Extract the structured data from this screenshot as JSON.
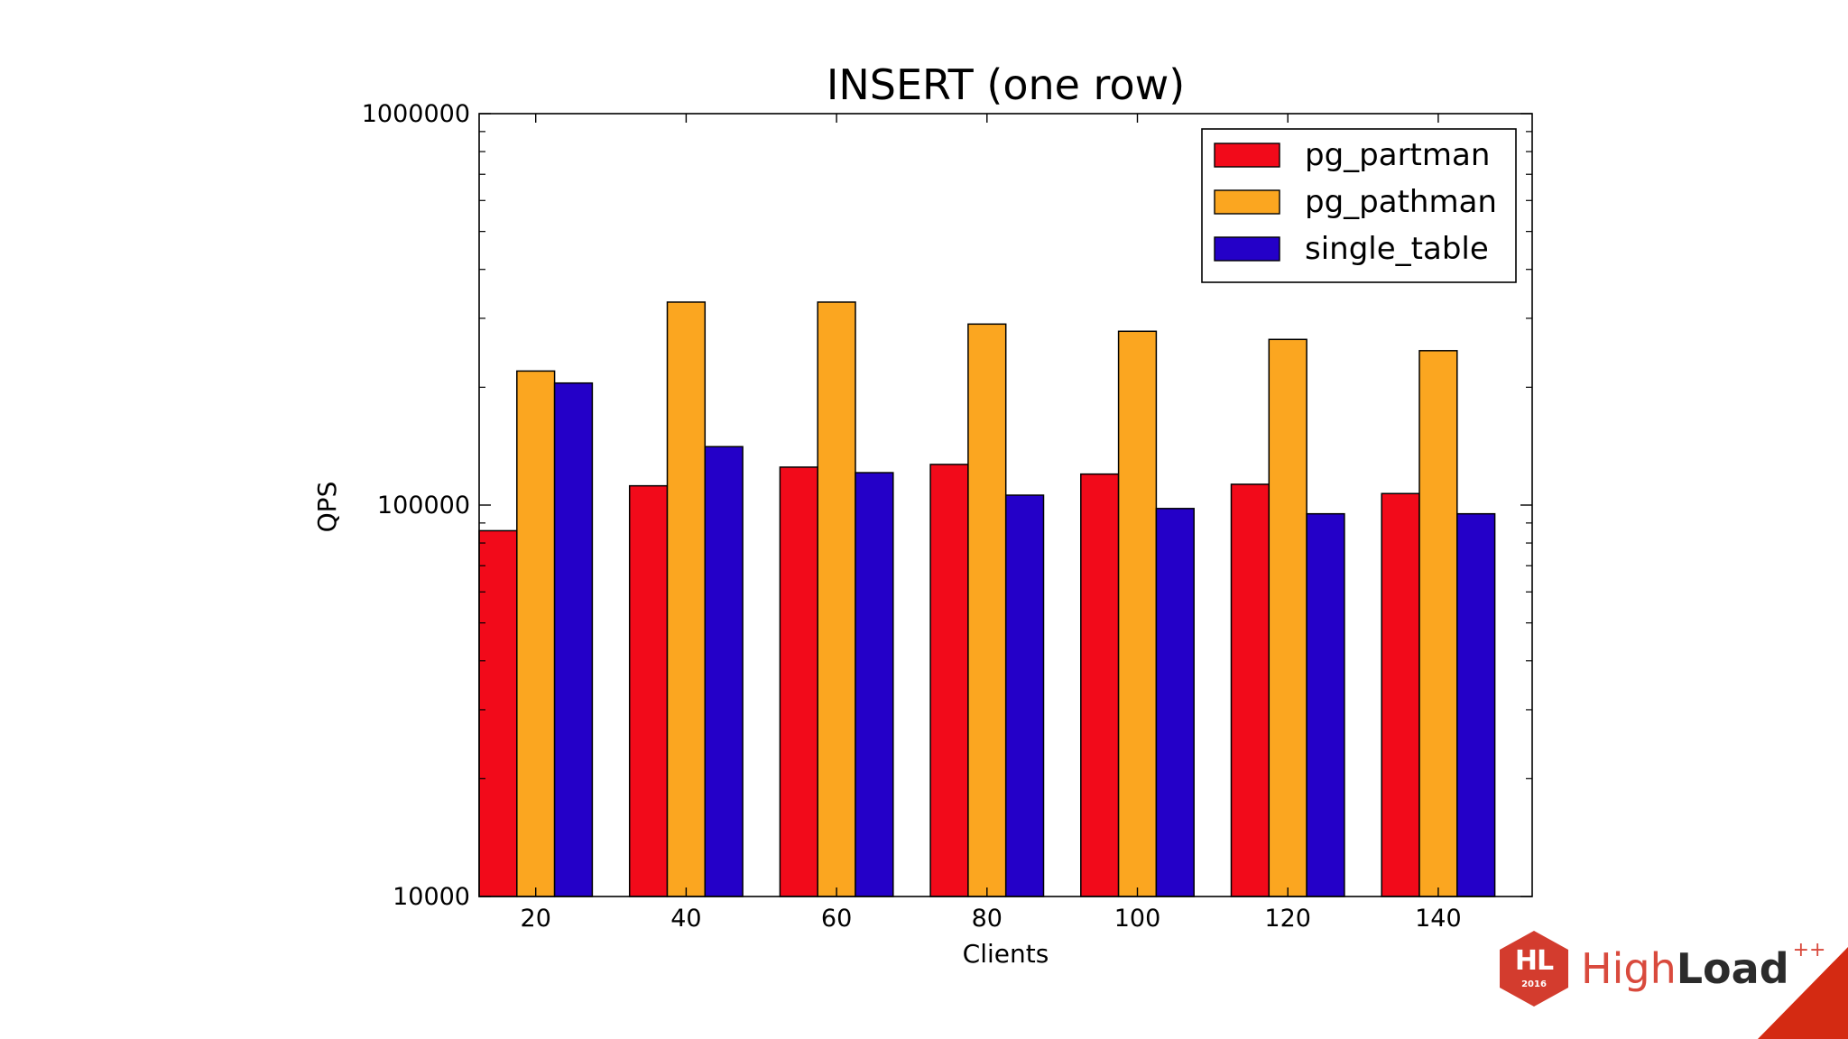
{
  "chart_data": {
    "type": "bar",
    "title": "INSERT (one row)",
    "xlabel": "Clients",
    "ylabel": "QPS",
    "yscale": "log",
    "ylim": [
      10000,
      1000000
    ],
    "yticks": [
      10000,
      100000,
      1000000
    ],
    "ytick_labels": [
      "10000",
      "100000",
      "1000000"
    ],
    "categories": [
      "20",
      "40",
      "60",
      "80",
      "100",
      "120",
      "140"
    ],
    "legend_position": "top-right",
    "series": [
      {
        "name": "pg_partman",
        "color": "#f20a1a",
        "values": [
          86000,
          112000,
          125000,
          127000,
          120000,
          113000,
          107000
        ]
      },
      {
        "name": "pg_pathman",
        "color": "#fba620",
        "values": [
          220000,
          330000,
          330000,
          290000,
          278000,
          265000,
          248000
        ]
      },
      {
        "name": "single_table",
        "color": "#2400c8",
        "values": [
          205000,
          141000,
          121000,
          106000,
          98000,
          95000,
          95000
        ]
      }
    ]
  },
  "brand": {
    "logo_mark": "HL",
    "logo_year": "2016",
    "name_light": "High",
    "name_bold": "Load",
    "name_suffix": "++"
  }
}
